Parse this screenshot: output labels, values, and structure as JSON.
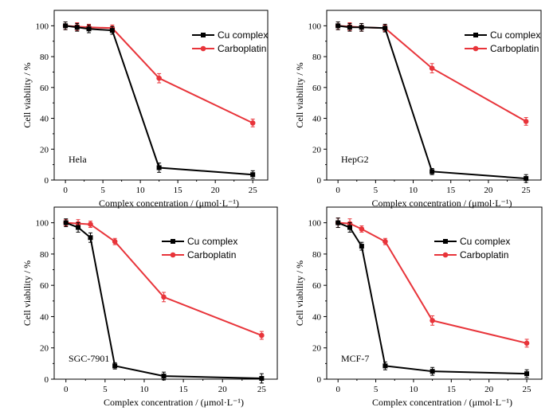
{
  "colors": {
    "cu": "#000000",
    "carbo": "#e8343a"
  },
  "chart_data": [
    {
      "type": "line",
      "panel_label": "Hela",
      "xlabel": "Complex concentration / (μmol·L⁻¹)",
      "ylabel": "Cell viability / %",
      "xlim": [
        -1.5,
        27
      ],
      "ylim": [
        0,
        110
      ],
      "xticks": [
        0,
        5,
        10,
        15,
        20,
        25
      ],
      "yticks": [
        0,
        20,
        40,
        60,
        80,
        100
      ],
      "x": [
        0,
        1.56,
        3.13,
        6.25,
        12.5,
        25
      ],
      "legend_position": "top-right",
      "series": [
        {
          "name": "Cu complex",
          "values": [
            100,
            99,
            98,
            97,
            8,
            3.5
          ],
          "errors": [
            2.5,
            2.5,
            2.5,
            2.5,
            3,
            2.5
          ]
        },
        {
          "name": "Carboplatin",
          "values": [
            100,
            99.5,
            99,
            98.5,
            66,
            37
          ],
          "errors": [
            2.5,
            2.5,
            2,
            2,
            3,
            2.5
          ]
        }
      ]
    },
    {
      "type": "line",
      "panel_label": "HepG2",
      "xlabel": "Complex concentration / (μmol·L⁻¹)",
      "ylabel": "Cell viability / %",
      "xlim": [
        -1.5,
        27
      ],
      "ylim": [
        0,
        110
      ],
      "xticks": [
        0,
        5,
        10,
        15,
        20,
        25
      ],
      "yticks": [
        0,
        20,
        40,
        60,
        80,
        100
      ],
      "x": [
        0,
        1.56,
        3.13,
        6.25,
        12.5,
        25
      ],
      "legend_position": "top-right",
      "series": [
        {
          "name": "Cu complex",
          "values": [
            100,
            99,
            99,
            98.5,
            5.5,
            1
          ],
          "errors": [
            2.5,
            2.5,
            2.5,
            2.5,
            2,
            2.5
          ]
        },
        {
          "name": "Carboplatin",
          "values": [
            100,
            99.5,
            99,
            98.5,
            72.5,
            38
          ],
          "errors": [
            2.5,
            2.5,
            2.5,
            2,
            3,
            2.5
          ]
        }
      ]
    },
    {
      "type": "line",
      "panel_label": "SGC-7901",
      "xlabel": "Complex concentration / (μmol·L⁻¹)",
      "ylabel": "Cell viability / %",
      "xlim": [
        -1.5,
        27
      ],
      "ylim": [
        0,
        110
      ],
      "xticks": [
        0,
        5,
        10,
        15,
        20,
        25
      ],
      "yticks": [
        0,
        20,
        40,
        60,
        80,
        100
      ],
      "x": [
        0,
        1.56,
        3.13,
        6.25,
        12.5,
        25
      ],
      "legend_position": "top-right",
      "series": [
        {
          "name": "Cu complex",
          "values": [
            100,
            97,
            90.5,
            8.5,
            2,
            0.5
          ],
          "errors": [
            2.5,
            3,
            3,
            2,
            2.5,
            3
          ]
        },
        {
          "name": "Carboplatin",
          "values": [
            100,
            99.5,
            99,
            88,
            52.5,
            28
          ],
          "errors": [
            2,
            2.5,
            2,
            2,
            3,
            2.5
          ]
        }
      ]
    },
    {
      "type": "line",
      "panel_label": "MCF-7",
      "xlabel": "Complex concentration / (μmol·L⁻¹)",
      "ylabel": "Cell viability / %",
      "xlim": [
        -1.5,
        27
      ],
      "ylim": [
        0,
        110
      ],
      "xticks": [
        0,
        5,
        10,
        15,
        20,
        25
      ],
      "yticks": [
        0,
        20,
        40,
        60,
        80,
        100
      ],
      "x": [
        0,
        1.56,
        3.13,
        6.25,
        12.5,
        25
      ],
      "legend_position": "top-right",
      "series": [
        {
          "name": "Cu complex",
          "values": [
            100,
            97,
            85,
            8.5,
            5,
            3.5
          ],
          "errors": [
            3,
            3,
            2.5,
            2.5,
            2.5,
            2.5
          ]
        },
        {
          "name": "Carboplatin",
          "values": [
            100,
            99.5,
            96,
            88,
            37.5,
            23
          ],
          "errors": [
            3,
            3,
            2,
            2,
            3,
            2.5
          ]
        }
      ]
    }
  ]
}
